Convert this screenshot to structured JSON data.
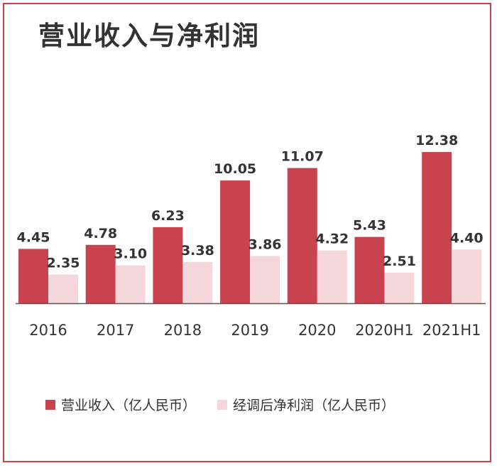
{
  "title": "营业收入与净利润",
  "chart_data": {
    "type": "bar",
    "categories": [
      "2016",
      "2017",
      "2018",
      "2019",
      "2020",
      "2020H1",
      "2021H1"
    ],
    "series": [
      {
        "name": "营业收入（亿人民币）",
        "values": [
          4.45,
          4.78,
          6.23,
          10.05,
          11.07,
          5.43,
          12.38
        ],
        "color": "#c9434e"
      },
      {
        "name": "经调后净利润（亿人民币）",
        "values": [
          2.35,
          3.1,
          3.38,
          3.86,
          4.32,
          2.51,
          4.4
        ],
        "color": "#f5d6da"
      }
    ],
    "labels": [
      [
        "4.45",
        "4.78",
        "6.23",
        "10.05",
        "11.07",
        "5.43",
        "12.38"
      ],
      [
        "2.35",
        "3.10",
        "3.38",
        "3.86",
        "4.32",
        "2.51",
        "4.40"
      ]
    ],
    "ylim": [
      0,
      14
    ],
    "grid": false,
    "legend_position": "bottom"
  }
}
